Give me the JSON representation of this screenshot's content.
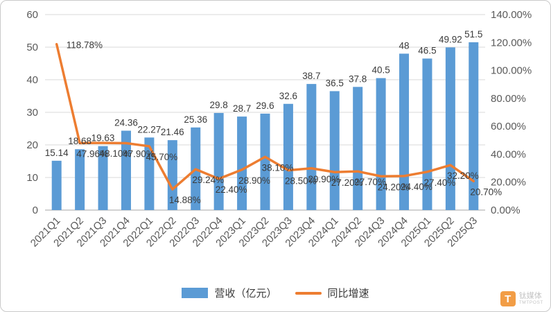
{
  "frame": {
    "background": "#FFFFFF",
    "border_color": "#C9C9C9"
  },
  "legend": {
    "items": [
      {
        "label": "营收（亿元）",
        "marker": "bar",
        "color": "#5B9BD5"
      },
      {
        "label": "同比增速",
        "marker": "line",
        "color": "#ED7D31"
      }
    ]
  },
  "watermark": {
    "logo_letter": "T",
    "name_cn": "钛媒体",
    "name_en": "TMTPOST"
  },
  "chart_data": {
    "type": "combo-bar-line",
    "title": "",
    "categories": [
      "2021Q1",
      "2021Q2",
      "2021Q3",
      "2021Q4",
      "2022Q1",
      "2022Q2",
      "2022Q3",
      "2022Q4",
      "2023Q1",
      "2023Q2",
      "2023Q3",
      "2023Q4",
      "2024Q1",
      "2024Q2",
      "2024Q3",
      "2024Q4",
      "2025Q1",
      "2025Q2",
      "2025Q3"
    ],
    "series": [
      {
        "name": "营收（亿元）",
        "chart": "bar",
        "axis": "left",
        "color": "#5B9BD5",
        "values": [
          15.14,
          18.68,
          19.63,
          24.36,
          22.27,
          21.46,
          25.36,
          29.8,
          28.7,
          29.6,
          32.6,
          38.7,
          36.5,
          37.8,
          40.5,
          48,
          46.5,
          49.92,
          51.5
        ],
        "labels": [
          "15.14",
          "18.68",
          "19.63",
          "24.36",
          "22.27",
          "21.46",
          "25.36",
          "29.8",
          "28.7",
          "29.6",
          "32.6",
          "38.7",
          "36.5",
          "37.8",
          "40.5",
          "48",
          "46.5",
          "49.92",
          "51.5"
        ]
      },
      {
        "name": "同比增速",
        "chart": "line",
        "axis": "right",
        "color": "#ED7D31",
        "values": [
          118.78,
          47.96,
          48.1,
          47.9,
          45.7,
          14.88,
          29.24,
          22.4,
          28.9,
          38.1,
          28.5,
          29.9,
          27.2,
          27.7,
          24.2,
          24.4,
          27.4,
          32.2,
          20.7
        ],
        "labels": [
          "118.78%",
          "47.96%",
          "48.10%",
          "47.90%",
          "45.70%",
          "14.88%",
          "29.24%",
          "22.40%",
          "28.90%",
          "38.10%",
          "28.50%",
          "29.90%",
          "27.20%",
          "27.70%",
          "24.20%",
          "24.40%",
          "27.40%",
          "32.20%",
          "20.70%"
        ]
      }
    ],
    "left_axis": {
      "min": 0,
      "max": 60,
      "ticks": [
        "0",
        "10",
        "20",
        "30",
        "40",
        "50",
        "60"
      ]
    },
    "right_axis": {
      "min": 0,
      "max": 140,
      "ticks": [
        "0.00%",
        "20.00%",
        "40.00%",
        "60.00%",
        "80.00%",
        "100.00%",
        "120.00%",
        "140.00%"
      ]
    },
    "grid": "horizontal",
    "legend_position": "bottom"
  }
}
